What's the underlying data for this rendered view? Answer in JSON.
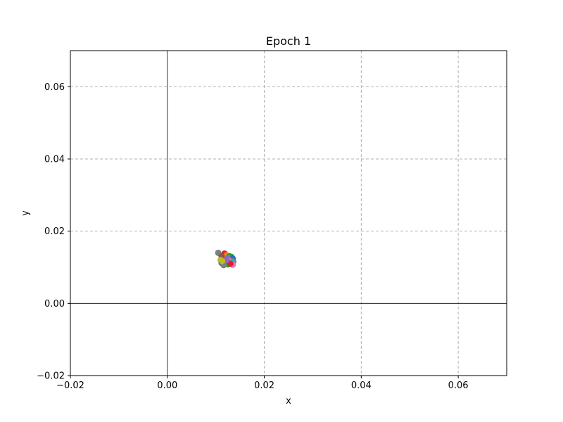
{
  "chart_data": {
    "type": "scatter",
    "title": "Epoch 1",
    "xlabel": "x",
    "ylabel": "y",
    "xlim": [
      -0.02,
      0.07
    ],
    "ylim": [
      -0.02,
      0.07
    ],
    "xticks": [
      -0.02,
      0.0,
      0.02,
      0.04,
      0.06
    ],
    "yticks": [
      -0.02,
      0.0,
      0.02,
      0.04,
      0.06
    ],
    "xtick_labels": [
      "−0.02",
      "0.00",
      "0.02",
      "0.04",
      "0.06"
    ],
    "ytick_labels": [
      "−0.02",
      "0.00",
      "0.02",
      "0.04",
      "0.06"
    ],
    "grid": true,
    "grid_style": "dashed",
    "zero_lines": true,
    "points": [
      {
        "x": 0.0105,
        "y": 0.014,
        "color": "#7f7f7f"
      },
      {
        "x": 0.0118,
        "y": 0.0138,
        "color": "#d62728"
      },
      {
        "x": 0.0122,
        "y": 0.0133,
        "color": "#ff7f0e"
      },
      {
        "x": 0.0128,
        "y": 0.0131,
        "color": "#2ca02c"
      },
      {
        "x": 0.0132,
        "y": 0.0129,
        "color": "#2ca02c"
      },
      {
        "x": 0.0112,
        "y": 0.013,
        "color": "#8c564b"
      },
      {
        "x": 0.0125,
        "y": 0.0125,
        "color": "#9467bd"
      },
      {
        "x": 0.0135,
        "y": 0.0124,
        "color": "#1f77b4"
      },
      {
        "x": 0.011,
        "y": 0.012,
        "color": "#bcbd22"
      },
      {
        "x": 0.0128,
        "y": 0.0118,
        "color": "#e377c2"
      },
      {
        "x": 0.0136,
        "y": 0.0116,
        "color": "#7f7f7f"
      },
      {
        "x": 0.0133,
        "y": 0.0113,
        "color": "#17becf"
      },
      {
        "x": 0.0112,
        "y": 0.0112,
        "color": "#1f77b4"
      },
      {
        "x": 0.012,
        "y": 0.011,
        "color": "#ff7f0e"
      },
      {
        "x": 0.0125,
        "y": 0.0108,
        "color": "#2ca02c"
      },
      {
        "x": 0.0116,
        "y": 0.0106,
        "color": "#7f7f7f"
      },
      {
        "x": 0.0135,
        "y": 0.0107,
        "color": "#e377c2"
      },
      {
        "x": 0.013,
        "y": 0.011,
        "color": "#d62728"
      },
      {
        "x": 0.0122,
        "y": 0.012,
        "color": "#9467bd"
      },
      {
        "x": 0.0113,
        "y": 0.0117,
        "color": "#bcbd22"
      }
    ]
  }
}
